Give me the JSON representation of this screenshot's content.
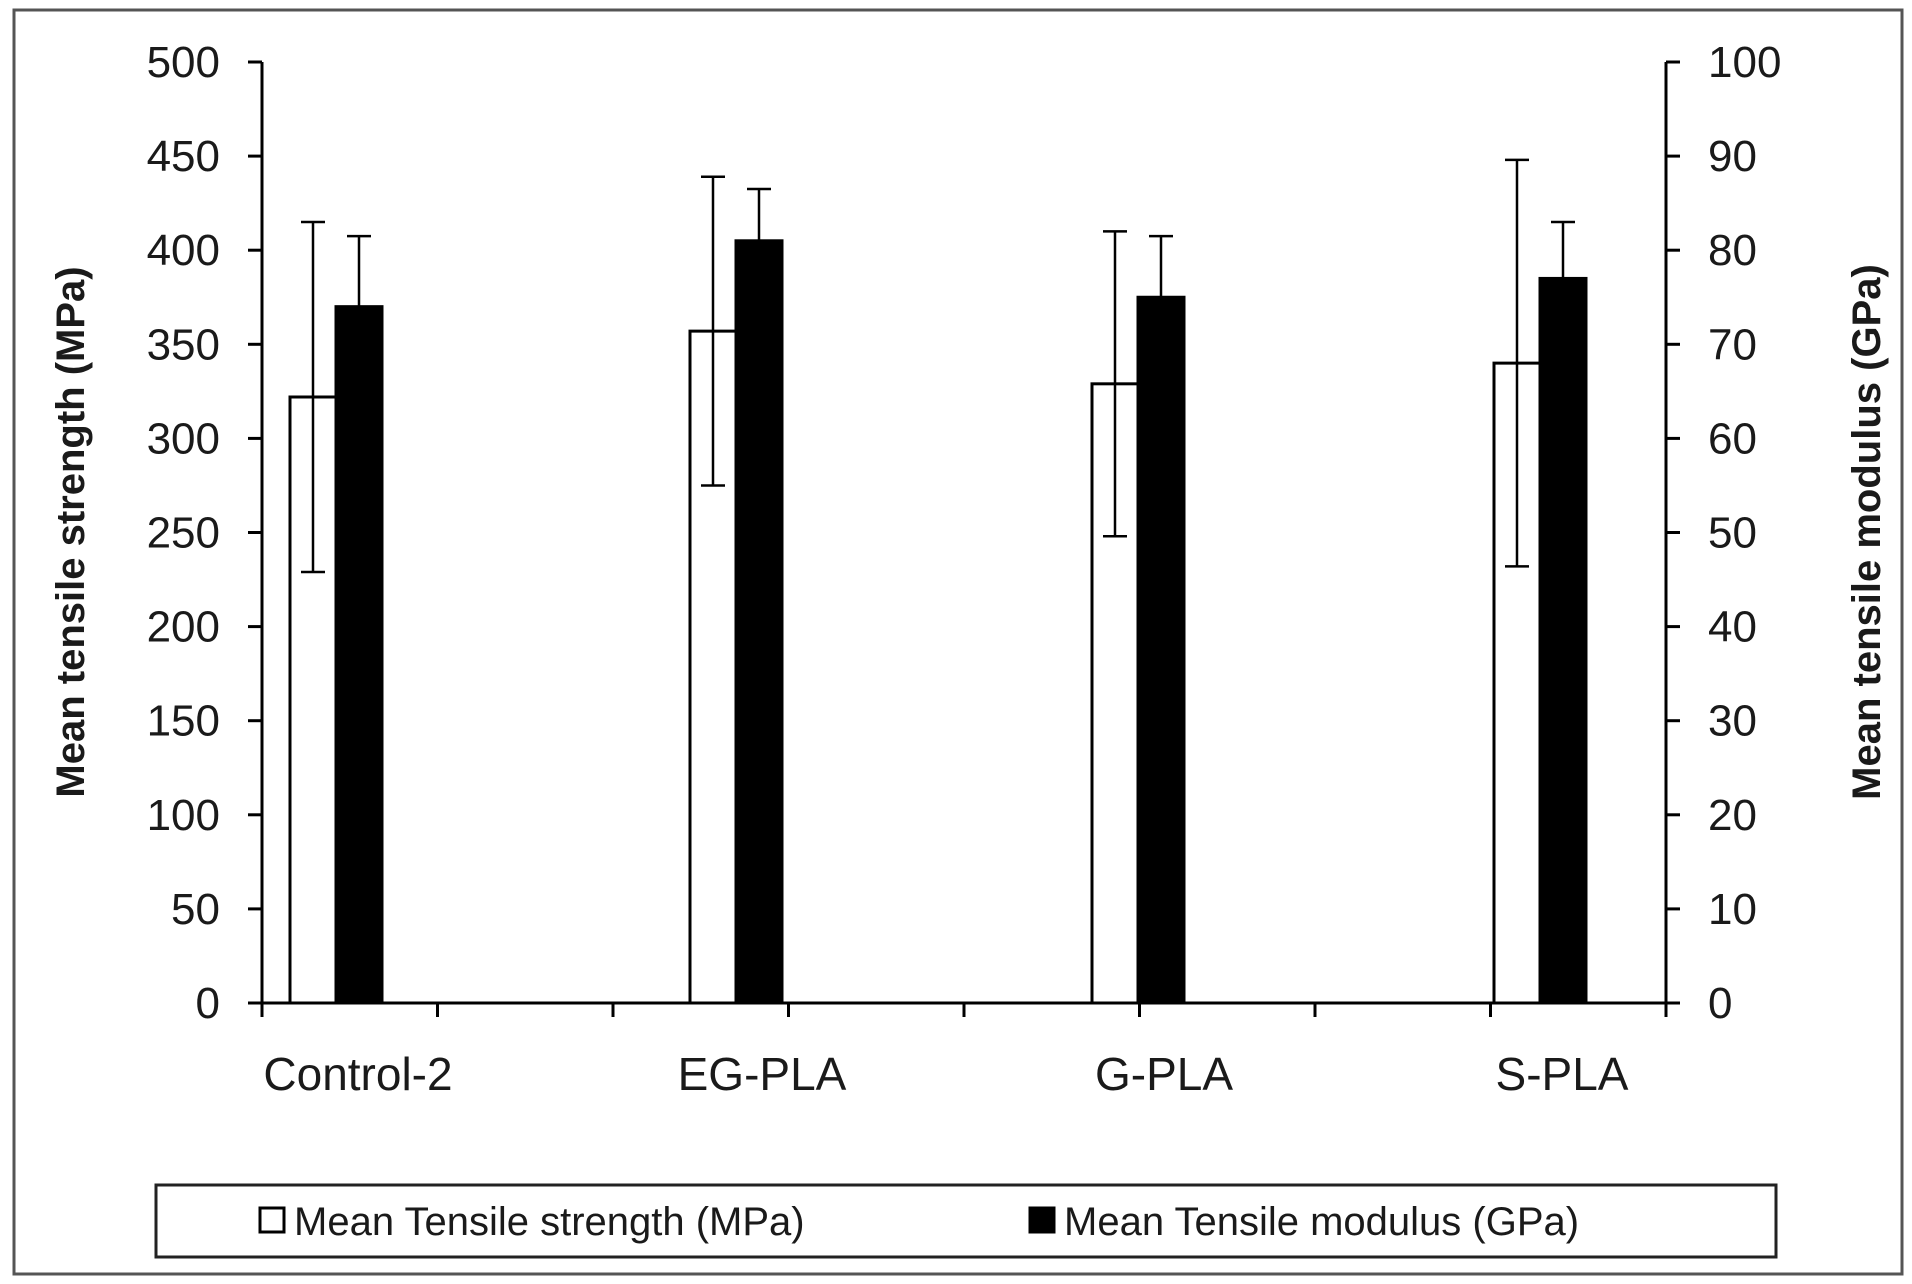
{
  "chart_data": {
    "type": "bar",
    "categories": [
      "Control-2",
      "EG-PLA",
      "G-PLA",
      "S-PLA"
    ],
    "series": [
      {
        "name": "Mean Tensile strength (MPa)",
        "axis": "left",
        "fill": "#ffffff",
        "values": [
          322,
          357,
          329,
          340
        ],
        "error": [
          93,
          82,
          81,
          108
        ]
      },
      {
        "name": "Mean Tensile modulus (GPa)",
        "axis": "right",
        "fill": "#000000",
        "values": [
          74,
          81,
          75,
          77
        ],
        "error": [
          7.5,
          5.5,
          6.5,
          6
        ]
      }
    ],
    "y_left": {
      "label": "Mean tensile strength (MPa)",
      "min": 0,
      "max": 500,
      "step": 50,
      "ticks": [
        "0",
        "50",
        "100",
        "150",
        "200",
        "250",
        "300",
        "350",
        "400",
        "450",
        "500"
      ]
    },
    "y_right": {
      "label": "Mean tensile modulus (GPa)",
      "min": 0,
      "max": 100,
      "step": 10,
      "ticks": [
        "0",
        "10",
        "20",
        "30",
        "40",
        "50",
        "60",
        "70",
        "80",
        "90",
        "100"
      ]
    },
    "grid": false,
    "legend": "bottom",
    "colors": {
      "axis": "#000000",
      "strength_bar": "#ffffff",
      "modulus_bar": "#000000"
    }
  }
}
